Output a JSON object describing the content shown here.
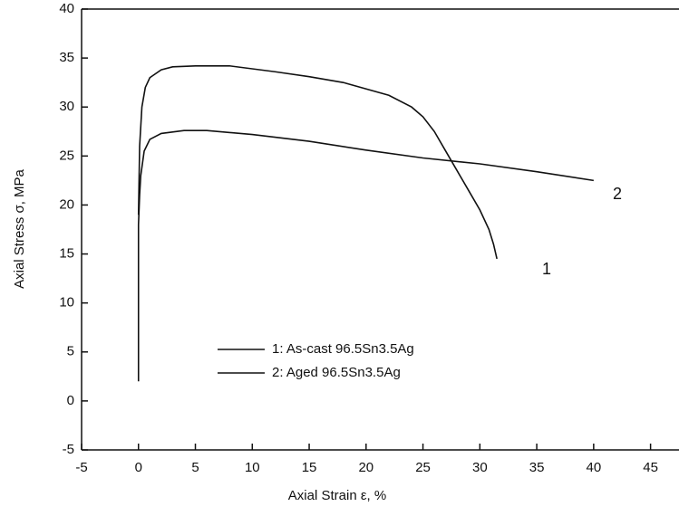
{
  "chart_data": {
    "type": "line",
    "xlabel": "Axial Strain ε, %",
    "ylabel": "Axial Stress σ, MPa",
    "xlim": [
      -5,
      47.5
    ],
    "ylim": [
      -5,
      40
    ],
    "xticks": [
      -5,
      0,
      5,
      10,
      15,
      20,
      25,
      30,
      35,
      40,
      45
    ],
    "yticks": [
      -5,
      0,
      5,
      10,
      15,
      20,
      25,
      30,
      35,
      40
    ],
    "series": [
      {
        "name": "1: As-cast 96.5Sn3.5Ag",
        "color": "#111111",
        "label": "1",
        "x": [
          0,
          0.1,
          0.3,
          0.6,
          1,
          2,
          3,
          5,
          8,
          12,
          15,
          18,
          22,
          24,
          25,
          26,
          27,
          28,
          29,
          30,
          30.8,
          31.2,
          31.5
        ],
        "values": [
          19,
          26,
          30,
          32,
          33,
          33.8,
          34.1,
          34.2,
          34.2,
          33.6,
          33.1,
          32.5,
          31.2,
          30,
          29,
          27.5,
          25.5,
          23.5,
          21.5,
          19.5,
          17.5,
          16,
          14.5
        ]
      },
      {
        "name": "2: Aged 96.5Sn3.5Ag",
        "color": "#111111",
        "label": "2",
        "x": [
          0,
          0,
          0.1,
          0.2,
          0.5,
          1,
          2,
          4,
          6,
          10,
          15,
          20,
          25,
          30,
          35,
          40
        ],
        "values": [
          2,
          18,
          21,
          23,
          25.5,
          26.7,
          27.3,
          27.6,
          27.6,
          27.2,
          26.5,
          25.6,
          24.8,
          24.2,
          23.4,
          22.5
        ]
      }
    ]
  }
}
